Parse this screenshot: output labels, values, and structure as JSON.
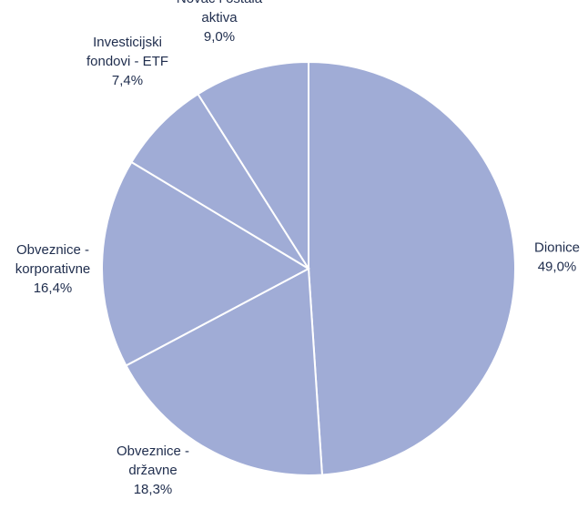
{
  "chart_data": {
    "type": "pie",
    "title": "",
    "slices": [
      {
        "label": [
          "Dionice"
        ],
        "value_label": "49,0%",
        "value": 49.0
      },
      {
        "label": [
          "Obveznice -",
          "državne"
        ],
        "value_label": "18,3%",
        "value": 18.3
      },
      {
        "label": [
          "Obveznice -",
          "korporativne"
        ],
        "value_label": "16,4%",
        "value": 16.4
      },
      {
        "label": [
          "Investicijski",
          "fondovi - ETF"
        ],
        "value_label": "7,4%",
        "value": 7.4
      },
      {
        "label": [
          "Novac i ostala",
          "aktiva"
        ],
        "value_label": "9,0%",
        "value": 9.0
      }
    ],
    "start": "12 o'clock",
    "direction": "clockwise",
    "legend": "none",
    "colors": {
      "slice_fill": "#a0acd6",
      "slice_border": "#ffffff",
      "label_text": "#1f2d4d"
    }
  }
}
